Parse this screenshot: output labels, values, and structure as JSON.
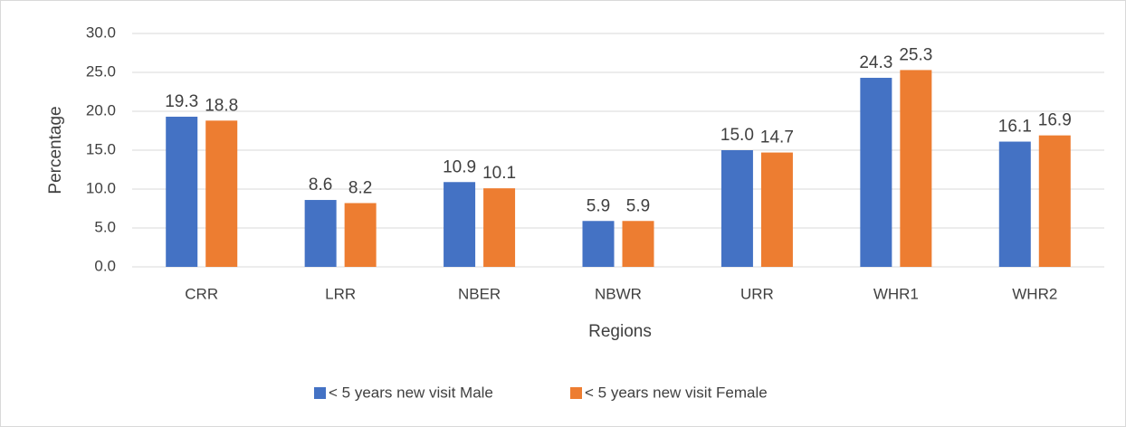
{
  "chart_data": {
    "type": "bar",
    "x_label": "Regions",
    "y_label": "Percentage",
    "categories": [
      "CRR",
      "LRR",
      "NBER",
      "NBWR",
      "URR",
      "WHR1",
      "WHR2"
    ],
    "series": [
      {
        "name": "< 5 years new visit Male",
        "color": "#4472c4",
        "values": [
          19.3,
          8.6,
          10.9,
          5.9,
          15.0,
          24.3,
          16.1
        ],
        "value_labels": [
          "19.3",
          "8.6",
          "10.9",
          "5.9",
          "15.0",
          "24.3",
          "16.1"
        ]
      },
      {
        "name": "< 5 years new visit Female",
        "color": "#ed7d31",
        "values": [
          18.8,
          8.2,
          10.1,
          5.9,
          14.7,
          25.3,
          16.9
        ],
        "value_labels": [
          "18.8",
          "8.2",
          "10.1",
          "5.9",
          "14.7",
          "25.3",
          "16.9"
        ]
      }
    ],
    "ylim": [
      0,
      30
    ],
    "yticks": [
      {
        "value": 0,
        "label": "0.0"
      },
      {
        "value": 5,
        "label": "5.0"
      },
      {
        "value": 10,
        "label": "10.0"
      },
      {
        "value": 15,
        "label": "15.0"
      },
      {
        "value": 20,
        "label": "20.0"
      },
      {
        "value": 25,
        "label": "25.0"
      },
      {
        "value": 30,
        "label": "30.0"
      }
    ],
    "grid": true,
    "legend": "bottom"
  }
}
